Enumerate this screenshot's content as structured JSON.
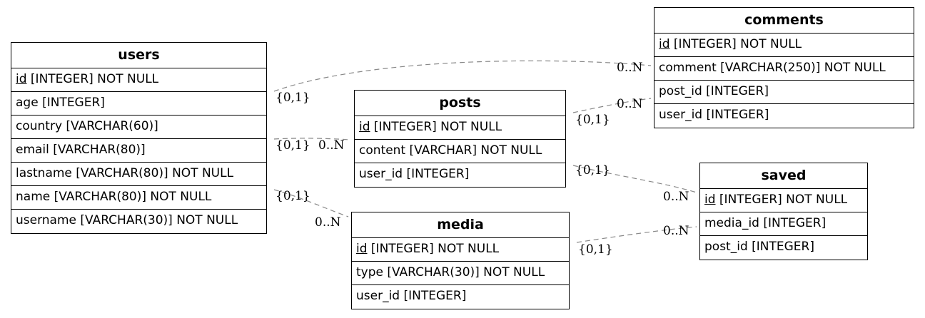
{
  "entities": {
    "users": {
      "name": "users",
      "pk": "id",
      "pk_rest": " [INTEGER] NOT NULL",
      "rows": [
        "age [INTEGER]",
        "country [VARCHAR(60)]",
        "email [VARCHAR(80)]",
        "lastname [VARCHAR(80)] NOT NULL",
        "name [VARCHAR(80)] NOT NULL",
        "username [VARCHAR(30)] NOT NULL"
      ]
    },
    "posts": {
      "name": "posts",
      "pk": "id",
      "pk_rest": " [INTEGER] NOT NULL",
      "rows": [
        "content [VARCHAR] NOT NULL",
        "user_id [INTEGER]"
      ]
    },
    "media": {
      "name": "media",
      "pk": "id",
      "pk_rest": " [INTEGER] NOT NULL",
      "rows": [
        "type [VARCHAR(30)] NOT NULL",
        "user_id [INTEGER]"
      ]
    },
    "comments": {
      "name": "comments",
      "pk": "id",
      "pk_rest": " [INTEGER] NOT NULL",
      "rows": [
        "comment [VARCHAR(250)] NOT NULL",
        "post_id [INTEGER]",
        "user_id [INTEGER]"
      ]
    },
    "saved": {
      "name": "saved",
      "pk": "id",
      "pk_rest": " [INTEGER] NOT NULL",
      "rows": [
        "media_id [INTEGER]",
        "post_id [INTEGER]"
      ]
    }
  },
  "relationships": [
    {
      "from": "users",
      "to": "comments",
      "from_card": "{0,1}",
      "to_card": "0..N"
    },
    {
      "from": "users",
      "to": "posts",
      "from_card": "{0,1}",
      "to_card": "0..N"
    },
    {
      "from": "users",
      "to": "media",
      "from_card": "{0,1}",
      "to_card": "0..N"
    },
    {
      "from": "posts",
      "to": "comments",
      "from_card": "{0,1}",
      "to_card": "0..N"
    },
    {
      "from": "posts",
      "to": "saved",
      "from_card": "{0,1}",
      "to_card": "0..N"
    },
    {
      "from": "media",
      "to": "saved",
      "from_card": "{0,1}",
      "to_card": "0..N"
    }
  ],
  "colors": {
    "edge": "#888888",
    "border": "#000000"
  }
}
